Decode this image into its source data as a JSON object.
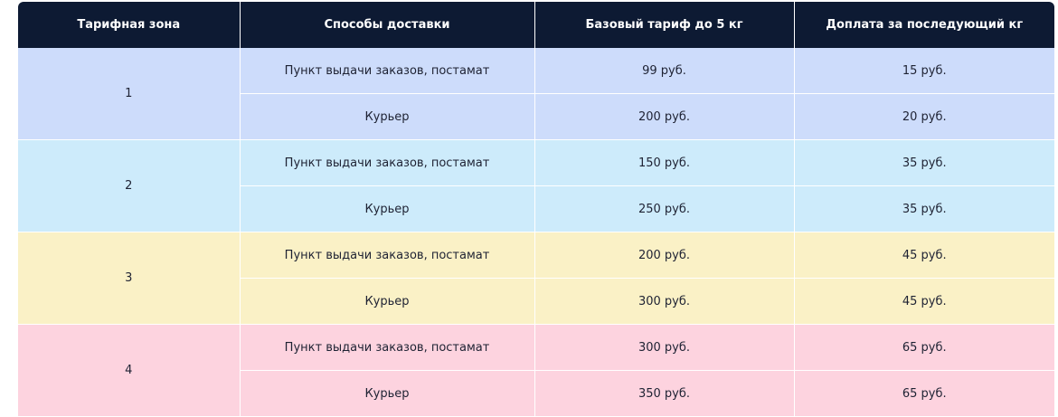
{
  "table": {
    "headers": [
      "Тарифная зона",
      "Способы доставки",
      "Базовый тариф до 5 кг",
      "Доплата за последующий кг"
    ],
    "zones": [
      {
        "zone": "1",
        "color": "#cddcfb",
        "rows": [
          {
            "method": "Пункт выдачи заказов, постамат",
            "base": "99 руб.",
            "extra": "15 руб."
          },
          {
            "method": "Курьер",
            "base": "200 руб.",
            "extra": "20 руб."
          }
        ]
      },
      {
        "zone": "2",
        "color": "#cdebfb",
        "rows": [
          {
            "method": "Пункт выдачи заказов, постамат",
            "base": "150 руб.",
            "extra": "35 руб."
          },
          {
            "method": "Курьер",
            "base": "250 руб.",
            "extra": "35 руб."
          }
        ]
      },
      {
        "zone": "3",
        "color": "#faf1c6",
        "rows": [
          {
            "method": "Пункт выдачи заказов, постамат",
            "base": "200 руб.",
            "extra": "45 руб."
          },
          {
            "method": "Курьер",
            "base": "300 руб.",
            "extra": "45 руб."
          }
        ]
      },
      {
        "zone": "4",
        "color": "#fdd3df",
        "rows": [
          {
            "method": "Пункт выдачи заказов, постамат",
            "base": "300 руб.",
            "extra": "65 руб."
          },
          {
            "method": "Курьер",
            "base": "350 руб.",
            "extra": "65 руб."
          }
        ]
      }
    ]
  }
}
